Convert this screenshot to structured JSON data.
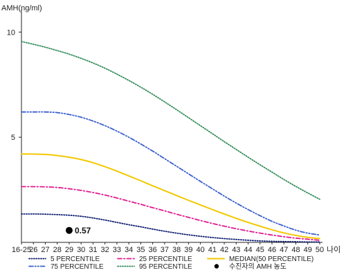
{
  "chart_data": {
    "type": "line",
    "ylabel": "AMH(ng/ml)",
    "xlabel": "나이",
    "x_labels": [
      "16-25",
      "26",
      "27",
      "28",
      "29",
      "30",
      "31",
      "32",
      "33",
      "34",
      "35",
      "36",
      "37",
      "38",
      "39",
      "40",
      "41",
      "42",
      "43",
      "44",
      "45",
      "46",
      "47",
      "48",
      "49",
      "50"
    ],
    "y_ticks": [
      5,
      10
    ],
    "ylim": [
      0,
      10.8
    ],
    "series": [
      {
        "name": "5 PERCENTILE",
        "color": "#0a1a6e",
        "dash": "dotted",
        "values": [
          1.35,
          1.35,
          1.34,
          1.32,
          1.29,
          1.24,
          1.16,
          1.06,
          0.95,
          0.84,
          0.74,
          0.63,
          0.53,
          0.44,
          0.36,
          0.29,
          0.23,
          0.18,
          0.14,
          0.1,
          0.07,
          0.05,
          0.04,
          0.03,
          0.02,
          0.02
        ]
      },
      {
        "name": "25 PERCENTILE",
        "color": "#e0198f",
        "dash": "dashdot",
        "values": [
          2.65,
          2.65,
          2.64,
          2.61,
          2.55,
          2.47,
          2.37,
          2.25,
          2.11,
          1.96,
          1.81,
          1.65,
          1.5,
          1.34,
          1.19,
          1.04,
          0.9,
          0.77,
          0.65,
          0.54,
          0.44,
          0.35,
          0.27,
          0.2,
          0.15,
          0.1
        ]
      },
      {
        "name": "MEDIAN(50 PERCENTILE)",
        "color": "#f2c800",
        "dash": "solid",
        "values": [
          4.2,
          4.2,
          4.18,
          4.13,
          4.05,
          3.94,
          3.79,
          3.6,
          3.39,
          3.16,
          2.93,
          2.69,
          2.46,
          2.23,
          2.0,
          1.78,
          1.56,
          1.35,
          1.14,
          0.95,
          0.77,
          0.6,
          0.45,
          0.33,
          0.24,
          0.18
        ]
      },
      {
        "name": "75 PERCENTILE",
        "color": "#3a5fcd",
        "dash": "dashdotdot",
        "values": [
          6.2,
          6.2,
          6.2,
          6.17,
          6.08,
          5.95,
          5.77,
          5.55,
          5.29,
          5.0,
          4.68,
          4.34,
          3.98,
          3.62,
          3.26,
          2.9,
          2.55,
          2.2,
          1.87,
          1.56,
          1.27,
          1.0,
          0.78,
          0.58,
          0.44,
          0.35
        ]
      },
      {
        "name": "95 PERCENTILE",
        "color": "#2e8b57",
        "dash": "dotted",
        "values": [
          9.55,
          9.42,
          9.28,
          9.12,
          8.95,
          8.75,
          8.53,
          8.28,
          8.0,
          7.7,
          7.38,
          7.04,
          6.68,
          6.31,
          5.93,
          5.55,
          5.17,
          4.79,
          4.42,
          4.05,
          3.69,
          3.34,
          2.99,
          2.66,
          2.35,
          2.05
        ]
      }
    ],
    "legend_order": [
      "5 PERCENTILE",
      "25 PERCENTILE",
      "MEDIAN(50 PERCENTILE)",
      "75 PERCENTILE",
      "95 PERCENTILE"
    ],
    "patient_marker": {
      "label": "수진자의 AMH 농도",
      "x": "29",
      "y": 0.57,
      "value_label": "0.57",
      "color": "#000000"
    },
    "axis_color": "#222222",
    "grid": false,
    "legend_position": "bottom"
  }
}
